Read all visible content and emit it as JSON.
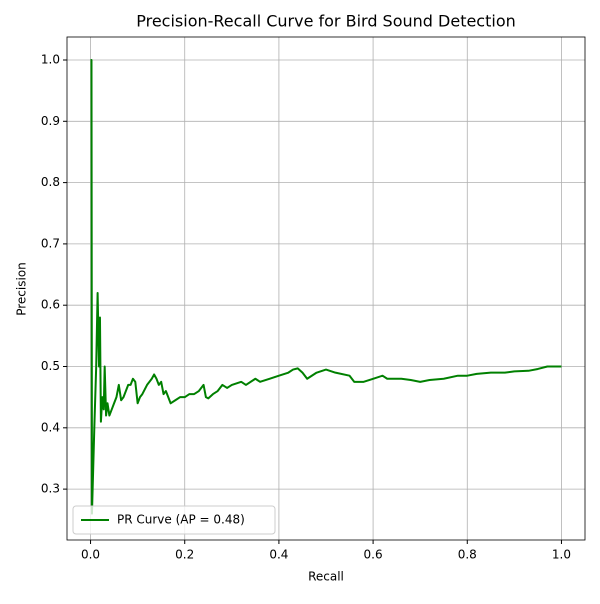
{
  "chart_data": {
    "type": "line",
    "title": "Precision-Recall Curve for Bird Sound Detection",
    "x_label": "Recall",
    "y_label": "Precision",
    "xlim": [
      -0.05,
      1.05
    ],
    "ylim": [
      0.217,
      1.0375
    ],
    "xticks": [
      {
        "value": 0,
        "label": "0.0"
      },
      0.2,
      0.4,
      0.6,
      0.8,
      {
        "value": 1,
        "label": "1.0"
      }
    ],
    "yticks": [
      0.3,
      0.4,
      0.5,
      0.6,
      0.7,
      0.8,
      0.9,
      {
        "value": 1,
        "label": "1.0"
      }
    ],
    "grid": true,
    "legend": "lower left",
    "series": [
      {
        "name": "PR Curve (AP = 0.48)",
        "color": "#008000",
        "x": [
          0,
          0.002,
          0.003,
          0.008,
          0.012,
          0.015,
          0.018,
          0.02,
          0.022,
          0.025,
          0.028,
          0.03,
          0.033,
          0.036,
          0.04,
          0.045,
          0.05,
          0.055,
          0.06,
          0.065,
          0.07,
          0.075,
          0.08,
          0.085,
          0.09,
          0.095,
          0.1,
          0.105,
          0.11,
          0.12,
          0.13,
          0.135,
          0.14,
          0.145,
          0.15,
          0.155,
          0.16,
          0.17,
          0.18,
          0.19,
          0.2,
          0.21,
          0.22,
          0.23,
          0.24,
          0.245,
          0.25,
          0.26,
          0.27,
          0.28,
          0.29,
          0.3,
          0.32,
          0.33,
          0.35,
          0.36,
          0.38,
          0.4,
          0.42,
          0.43,
          0.44,
          0.45,
          0.46,
          0.48,
          0.5,
          0.52,
          0.55,
          0.56,
          0.58,
          0.6,
          0.62,
          0.63,
          0.66,
          0.68,
          0.7,
          0.72,
          0.75,
          0.78,
          0.8,
          0.82,
          0.85,
          0.88,
          0.9,
          0.93,
          0.95,
          0.97,
          1.0
        ],
        "values": [
          1.0,
          1.0,
          0.26,
          0.4,
          0.5,
          0.62,
          0.5,
          0.58,
          0.41,
          0.45,
          0.43,
          0.5,
          0.42,
          0.44,
          0.42,
          0.43,
          0.44,
          0.45,
          0.47,
          0.445,
          0.45,
          0.46,
          0.47,
          0.47,
          0.48,
          0.475,
          0.44,
          0.45,
          0.455,
          0.47,
          0.48,
          0.487,
          0.48,
          0.47,
          0.475,
          0.455,
          0.46,
          0.44,
          0.445,
          0.45,
          0.45,
          0.455,
          0.455,
          0.46,
          0.47,
          0.45,
          0.448,
          0.455,
          0.46,
          0.47,
          0.465,
          0.47,
          0.475,
          0.47,
          0.48,
          0.475,
          0.48,
          0.485,
          0.49,
          0.495,
          0.497,
          0.49,
          0.48,
          0.49,
          0.495,
          0.49,
          0.485,
          0.475,
          0.475,
          0.48,
          0.485,
          0.48,
          0.48,
          0.478,
          0.475,
          0.478,
          0.48,
          0.485,
          0.485,
          0.488,
          0.49,
          0.49,
          0.492,
          0.493,
          0.496,
          0.5,
          0.5
        ]
      }
    ]
  }
}
